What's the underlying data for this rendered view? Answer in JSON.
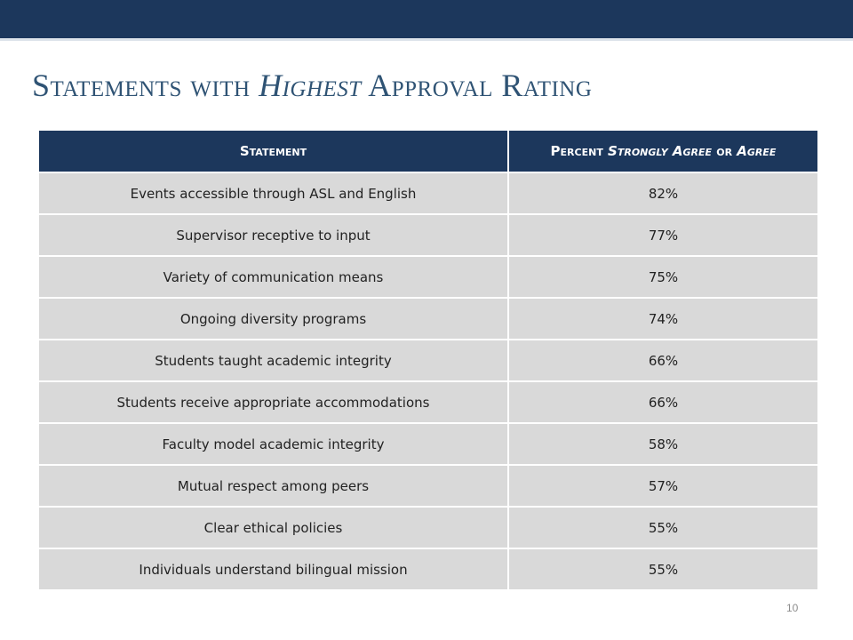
{
  "slide": {
    "title_parts": [
      "Statements with ",
      "Highest",
      " Approval Rating"
    ],
    "page_number": "10"
  },
  "table": {
    "header_statement": "Statement",
    "header_percent_parts": [
      "Percent ",
      "Strongly Agree",
      " or ",
      "Agree"
    ],
    "rows": [
      {
        "statement": "Events accessible through ASL and English",
        "percent": "82%"
      },
      {
        "statement": "Supervisor receptive to input",
        "percent": "77%"
      },
      {
        "statement": "Variety of communication means",
        "percent": "75%"
      },
      {
        "statement": "Ongoing diversity programs",
        "percent": "74%"
      },
      {
        "statement": "Students taught academic integrity",
        "percent": "66%"
      },
      {
        "statement": "Students receive appropriate accommodations",
        "percent": "66%"
      },
      {
        "statement": "Faculty model academic integrity",
        "percent": "58%"
      },
      {
        "statement": "Mutual respect among peers",
        "percent": "57%"
      },
      {
        "statement": "Clear ethical policies",
        "percent": "55%"
      },
      {
        "statement": "Individuals understand bilingual mission",
        "percent": "55%"
      }
    ]
  },
  "colors": {
    "header_bar": "#1c375c",
    "title_text": "#2f5374",
    "row_fill": "#d9d9d9"
  }
}
